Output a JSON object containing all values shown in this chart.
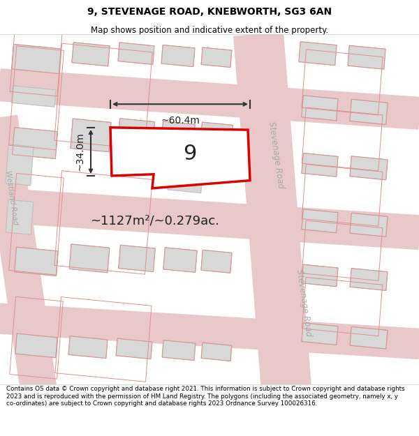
{
  "title_line1": "9, STEVENAGE ROAD, KNEBWORTH, SG3 6AN",
  "title_line2": "Map shows position and indicative extent of the property.",
  "footer_text": "Contains OS data © Crown copyright and database right 2021. This information is subject to Crown copyright and database rights 2023 and is reproduced with the permission of HM Land Registry. The polygons (including the associated geometry, namely x, y co-ordinates) are subject to Crown copyright and database rights 2023 Ordnance Survey 100026316.",
  "area_label": "~1127m²/~0.279ac.",
  "width_label": "~60.4m",
  "height_label": "~34.0m",
  "plot_number": "9",
  "map_bg": "#f2f0ee",
  "road_fill": "#e8c8c8",
  "building_fill": "#d8d8d8",
  "building_edge": "#c0c0c0",
  "plot_edge_color": "#dd0000",
  "plot_fill": "#ffffff",
  "parcel_edge": "#e09090",
  "road_label_color": "#aaaaaa",
  "annotation_color": "#222222",
  "title_fs": 10,
  "subtitle_fs": 8.5,
  "area_fs": 13,
  "dim_fs": 10,
  "plot_label_fs": 22,
  "road_label_fs": 8.5,
  "footer_fs": 6.3,
  "tilt": -5.0,
  "map_xlim": [
    0,
    600
  ],
  "map_ylim": [
    0,
    450
  ]
}
